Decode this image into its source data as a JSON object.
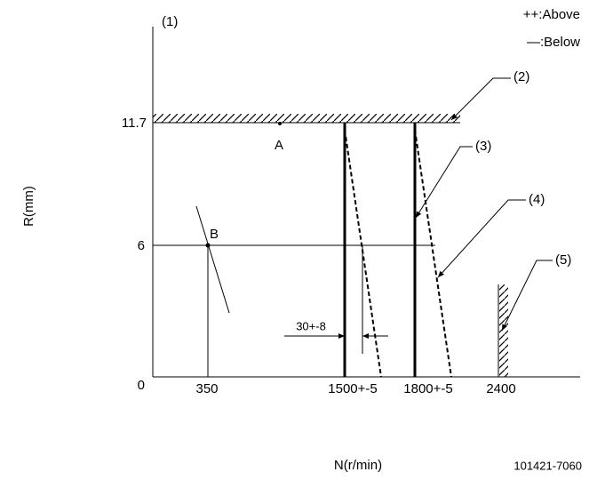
{
  "axis": {
    "callout": "(1)",
    "y_label": "R(mm)",
    "x_label": "N(r/min)",
    "origin": "0",
    "y_ticks": [
      "11.7",
      "6"
    ],
    "x_ticks": [
      "350",
      "1500+-5",
      "1800+-5",
      "2400"
    ]
  },
  "legend": [
    "++:Above",
    "—:Below"
  ],
  "points": [
    "A",
    "B"
  ],
  "callouts": [
    "(2)",
    "(3)",
    "(4)",
    "(5)"
  ],
  "dimension": "30+-8",
  "code": "101421-7060"
}
